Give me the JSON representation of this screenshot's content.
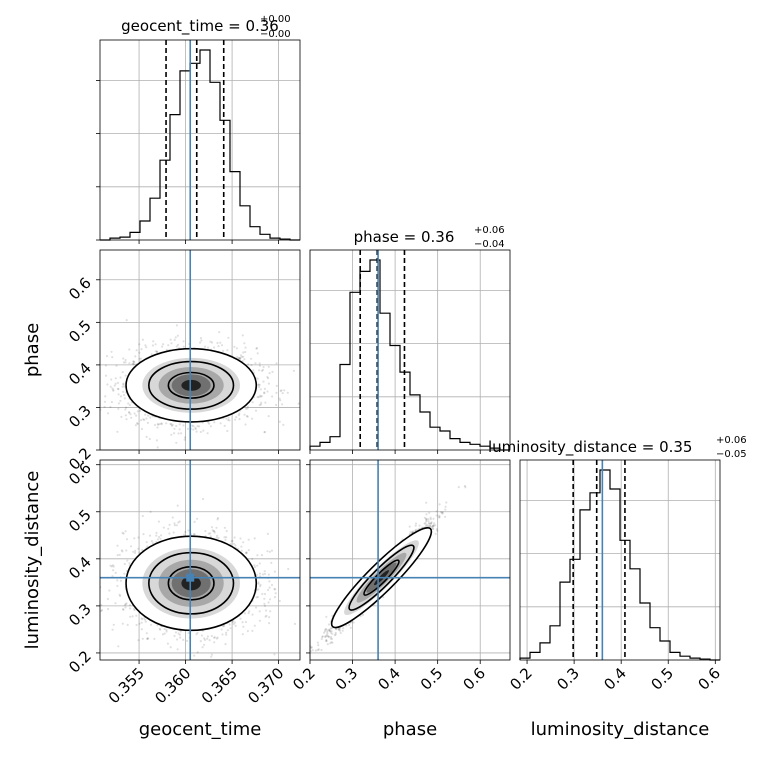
{
  "chart_data": {
    "type": "corner",
    "parameters": [
      "geocent_time",
      "phase",
      "luminosity_distance"
    ],
    "truths": {
      "geocent_time": 0.3605,
      "phase": 0.36,
      "luminosity_distance": 0.36
    },
    "grid": true,
    "titles": {
      "geocent_time": {
        "name": "geocent_time",
        "median": "0.36",
        "plus": "+0.00",
        "minus": "−0.00"
      },
      "phase": {
        "name": "phase",
        "median": "0.36",
        "plus": "+0.06",
        "minus": "−0.04"
      },
      "luminosity_distance": {
        "name": "luminosity_distance",
        "median": "0.35",
        "plus": "+0.06",
        "minus": "−0.05"
      }
    },
    "ranges": {
      "geocent_time": [
        0.3508,
        0.3723
      ],
      "phase": [
        0.2,
        0.67
      ],
      "luminosity_distance": [
        0.185,
        0.61
      ]
    },
    "ticks": {
      "geocent_time": [
        "0.355",
        "0.360",
        "0.365",
        "0.370"
      ],
      "phase": [
        "0.2",
        "0.3",
        "0.4",
        "0.5",
        "0.6"
      ],
      "luminosity_distance": [
        "0.2",
        "0.3",
        "0.4",
        "0.5",
        "0.6"
      ]
    },
    "tick_values": {
      "geocent_time": [
        0.355,
        0.36,
        0.365,
        0.37
      ],
      "phase": [
        0.2,
        0.3,
        0.4,
        0.5,
        0.6
      ],
      "luminosity_distance": [
        0.2,
        0.3,
        0.4,
        0.5,
        0.6
      ]
    },
    "quantiles": {
      "geocent_time": [
        0.3579,
        0.3612,
        0.3641
      ],
      "phase": [
        0.318,
        0.358,
        0.422
      ],
      "luminosity_distance": [
        0.298,
        0.348,
        0.408
      ]
    },
    "histograms": {
      "geocent_time": {
        "edges_min": 0.3508,
        "edges_max": 0.3723,
        "counts": [
          0,
          0.01,
          0.015,
          0.04,
          0.1,
          0.22,
          0.42,
          0.66,
          0.89,
          0.93,
          1.0,
          0.83,
          0.63,
          0.36,
          0.18,
          0.07,
          0.03,
          0.01,
          0.005,
          0
        ]
      },
      "phase": {
        "edges_min": 0.2,
        "edges_max": 0.67,
        "counts": [
          0.02,
          0.04,
          0.07,
          0.45,
          0.83,
          0.94,
          1.0,
          0.72,
          0.55,
          0.41,
          0.29,
          0.2,
          0.12,
          0.1,
          0.06,
          0.04,
          0.03,
          0.02,
          0.01,
          0
        ]
      },
      "luminosity_distance": {
        "edges_min": 0.185,
        "edges_max": 0.61,
        "counts": [
          0.01,
          0.04,
          0.09,
          0.18,
          0.41,
          0.53,
          0.79,
          0.88,
          1.0,
          0.9,
          0.63,
          0.48,
          0.3,
          0.17,
          0.1,
          0.04,
          0.02,
          0.01,
          0.005,
          0
        ]
      }
    },
    "density_2d": [
      {
        "x": "geocent_time",
        "y": "phase",
        "center": [
          0.3606,
          0.352
        ],
        "spread": [
          0.0035,
          0.043
        ],
        "rho": 0
      },
      {
        "x": "geocent_time",
        "y": "luminosity_distance",
        "center": [
          0.3606,
          0.348
        ],
        "spread": [
          0.0035,
          0.05
        ],
        "rho": 0
      },
      {
        "x": "phase",
        "y": "luminosity_distance",
        "center": [
          0.368,
          0.36
        ],
        "spread": [
          0.055,
          0.055
        ],
        "rho": 0.97
      }
    ]
  }
}
